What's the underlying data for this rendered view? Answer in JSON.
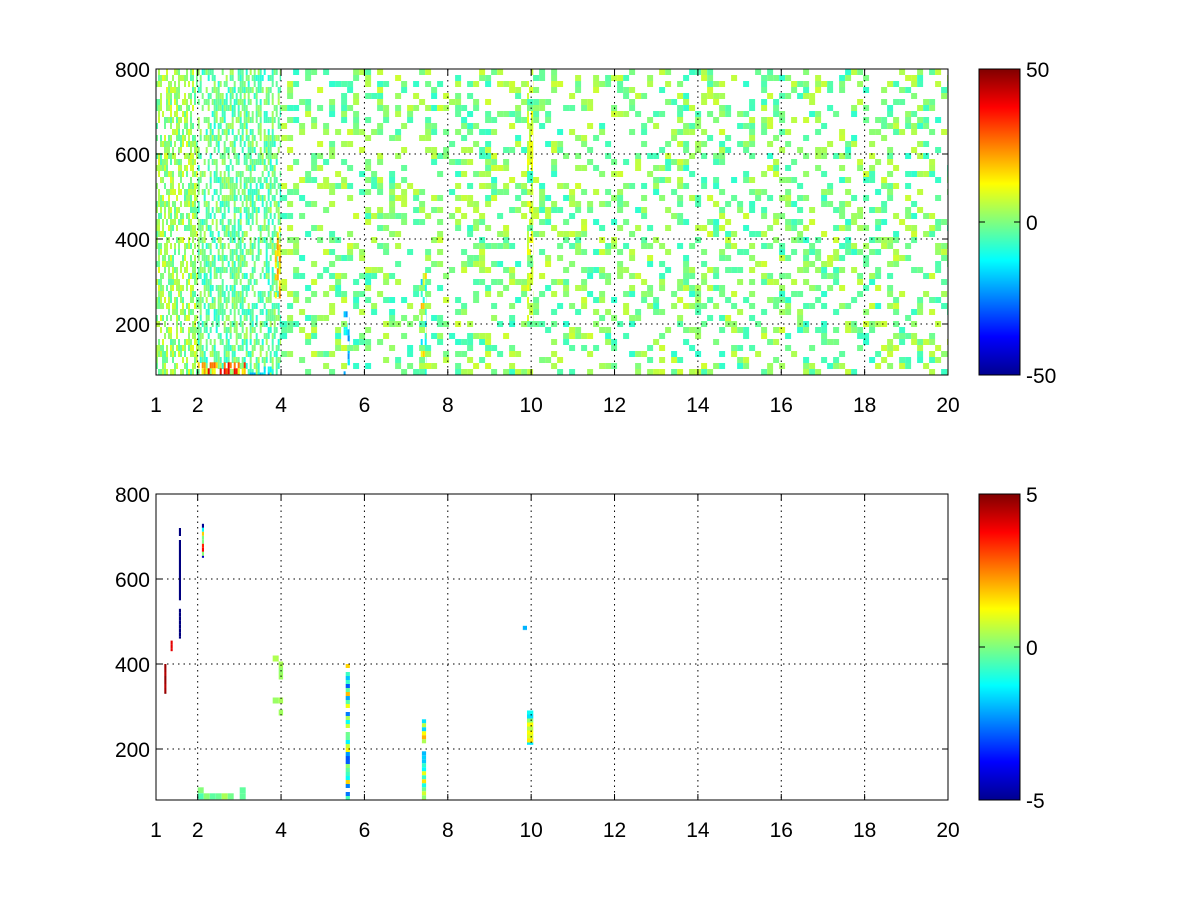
{
  "chart_data": [
    {
      "type": "heatmap",
      "title": "",
      "xlabel": "",
      "ylabel": "",
      "xlim": [
        1,
        20
      ],
      "ylim": [
        80,
        800
      ],
      "xticks": [
        1,
        2,
        4,
        6,
        8,
        10,
        12,
        14,
        16,
        18,
        20
      ],
      "xtick_labels": [
        "1",
        "2",
        "4",
        "6",
        "8",
        "10",
        "12",
        "14",
        "16",
        "18",
        "20"
      ],
      "yticks": [
        200,
        400,
        600,
        800
      ],
      "ytick_labels": [
        "200",
        "400",
        "600",
        "800"
      ],
      "grid": true,
      "colormap": "jet",
      "clim": [
        -50,
        50
      ],
      "colorbar_ticks": [
        -50,
        0,
        50
      ],
      "colorbar_labels": [
        "-50",
        "0",
        "50"
      ],
      "colorbar_position": "right",
      "features": [
        {
          "x": [
            1.0,
            2.0
          ],
          "y": [
            80,
            800
          ],
          "value_range": [
            -5,
            10
          ],
          "density": "high"
        },
        {
          "x": [
            2.0,
            4.0
          ],
          "y": [
            80,
            800
          ],
          "value_range": [
            -10,
            5
          ],
          "density": "high"
        },
        {
          "x": [
            2.0,
            3.2
          ],
          "y": [
            80,
            110
          ],
          "value_range": [
            10,
            40
          ],
          "density": "high"
        },
        {
          "x": [
            3.2,
            3.8
          ],
          "y": [
            80,
            100
          ],
          "value_range": [
            -20,
            -10
          ],
          "density": "high"
        },
        {
          "x": [
            3.85,
            4.0
          ],
          "y": [
            260,
            430
          ],
          "value_range": [
            10,
            25
          ],
          "density": "high"
        },
        {
          "x": [
            5.5,
            5.65
          ],
          "y": [
            80,
            230
          ],
          "value_range": [
            -25,
            -10
          ],
          "density": "high"
        },
        {
          "x": [
            7.35,
            7.5
          ],
          "y": [
            80,
            320
          ],
          "value_range": [
            -20,
            20
          ],
          "density": "high"
        },
        {
          "x": [
            9.9,
            10.05
          ],
          "y": [
            200,
            800
          ],
          "value_range": [
            5,
            12
          ],
          "density": "high"
        },
        {
          "x": [
            4.0,
            20.0
          ],
          "y": [
            80,
            800
          ],
          "value_range": [
            -8,
            8
          ],
          "density": "sparse"
        }
      ]
    },
    {
      "type": "heatmap",
      "title": "",
      "xlabel": "",
      "ylabel": "",
      "xlim": [
        1,
        20
      ],
      "ylim": [
        80,
        800
      ],
      "xticks": [
        1,
        2,
        4,
        6,
        8,
        10,
        12,
        14,
        16,
        18,
        20
      ],
      "xtick_labels": [
        "1",
        "2",
        "4",
        "6",
        "8",
        "10",
        "12",
        "14",
        "16",
        "18",
        "20"
      ],
      "yticks": [
        200,
        400,
        600,
        800
      ],
      "ytick_labels": [
        "200",
        "400",
        "600",
        "800"
      ],
      "grid": true,
      "colormap": "jet",
      "clim": [
        -5,
        5
      ],
      "colorbar_ticks": [
        -5,
        0,
        5
      ],
      "colorbar_labels": [
        "-5",
        "0",
        "5"
      ],
      "colorbar_position": "right",
      "features": [
        {
          "x": [
            1.55,
            1.6
          ],
          "y": [
            550,
            720
          ],
          "value_range": [
            -5,
            -5
          ],
          "density": "line"
        },
        {
          "x": [
            1.55,
            1.6
          ],
          "y": [
            460,
            530
          ],
          "value_range": [
            -5,
            -5
          ],
          "density": "line"
        },
        {
          "x": [
            1.35,
            1.4
          ],
          "y": [
            430,
            455
          ],
          "value_range": [
            4,
            4
          ],
          "density": "line"
        },
        {
          "x": [
            1.2,
            1.25
          ],
          "y": [
            330,
            400
          ],
          "value_range": [
            4,
            5
          ],
          "density": "line"
        },
        {
          "x": [
            2.1,
            2.15
          ],
          "y": [
            650,
            730
          ],
          "value_range": [
            4,
            -5
          ],
          "density": "line"
        },
        {
          "x": [
            2.0,
            3.5
          ],
          "y": [
            80,
            110
          ],
          "value_range": [
            -0.5,
            0.5
          ],
          "density": "sparse"
        },
        {
          "x": [
            3.8,
            4.05
          ],
          "y": [
            260,
            420
          ],
          "value_range": [
            0,
            0.5
          ],
          "density": "sparse"
        },
        {
          "x": [
            5.55,
            5.65
          ],
          "y": [
            80,
            400
          ],
          "value_range": [
            -3,
            2
          ],
          "density": "line"
        },
        {
          "x": [
            7.38,
            7.48
          ],
          "y": [
            80,
            270
          ],
          "value_range": [
            -2,
            2
          ],
          "density": "line"
        },
        {
          "x": [
            9.9,
            10.05
          ],
          "y": [
            210,
            300
          ],
          "value_range": [
            -2,
            2
          ],
          "density": "line"
        },
        {
          "x": [
            9.8,
            9.9
          ],
          "y": [
            480,
            490
          ],
          "value_range": [
            -2,
            -2
          ],
          "density": "line"
        }
      ]
    }
  ]
}
